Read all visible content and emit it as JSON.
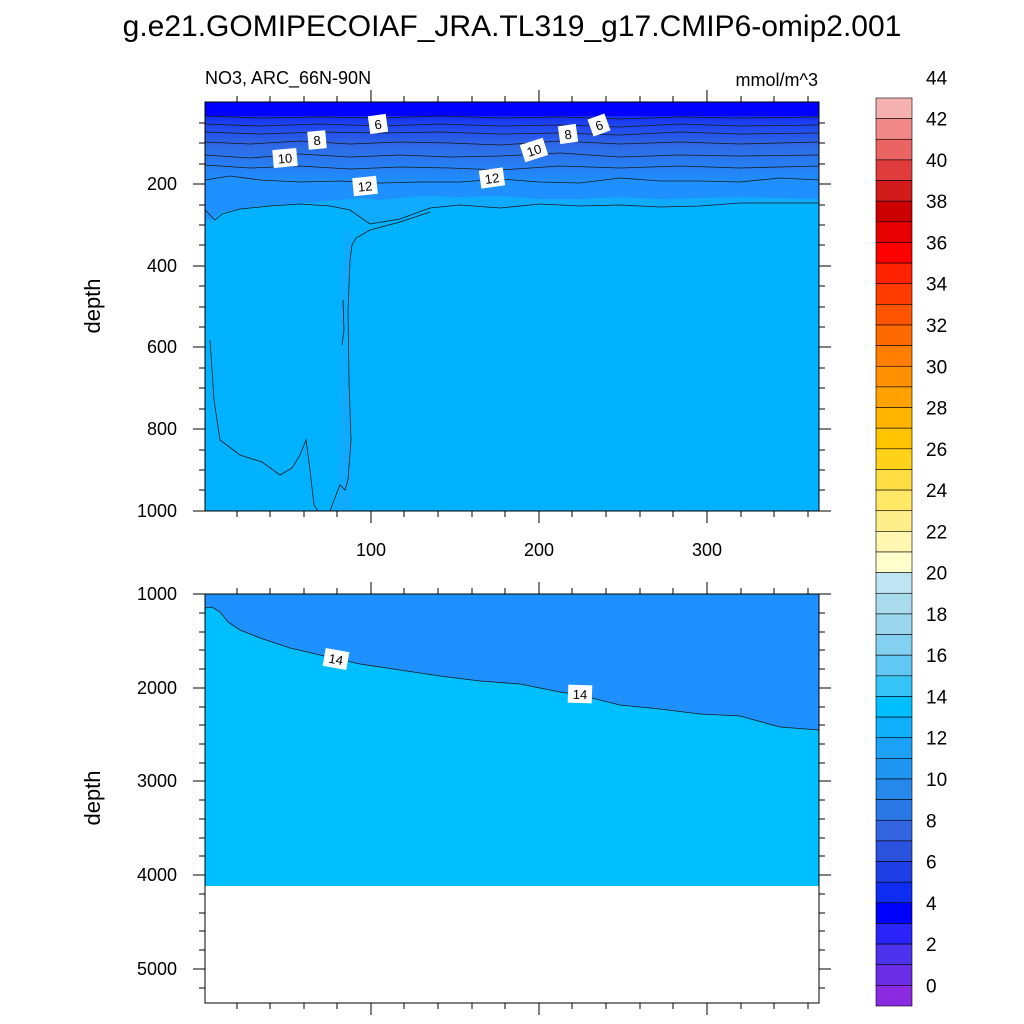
{
  "title": "g.e21.GOMIPECOIAF_JRA.TL319_g17.CMIP6-omip2.001",
  "chart_data": [
    {
      "type": "heatmap",
      "panel": "upper",
      "subtitle_left": "NO3, ARC_66N-90N",
      "subtitle_right": "mmol/m^3",
      "ylabel": "depth",
      "xlabel": "",
      "xlim": [
        1,
        366
      ],
      "ylim": [
        1000,
        0
      ],
      "x_ticks": [
        "100",
        "200",
        "300"
      ],
      "y_ticks": [
        "200",
        "400",
        "600",
        "800",
        "1000"
      ],
      "contour_labels": [
        "6",
        "8",
        "10",
        "12",
        "6",
        "8",
        "10",
        "12"
      ],
      "contours": [
        {
          "level": 6,
          "depth_at_start": 75,
          "depth_at_end": 70
        },
        {
          "level": 8,
          "depth_at_start": 110,
          "depth_at_end": 110
        },
        {
          "level": 10,
          "depth_at_start": 150,
          "depth_at_end": 150
        },
        {
          "level": 12,
          "depth_at_start": 190,
          "depth_at_end": 185
        },
        {
          "level": 13,
          "depth_at_start": 260,
          "depth_at_end": 245
        }
      ]
    },
    {
      "type": "heatmap",
      "panel": "lower",
      "ylabel": "depth",
      "xlabel": "",
      "xlim": [
        1,
        366
      ],
      "ylim": [
        5350,
        1000
      ],
      "y_ticks": [
        "1000",
        "2000",
        "3000",
        "4000",
        "5000"
      ],
      "contour_labels": [
        "14",
        "14"
      ],
      "contours": [
        {
          "level": 14,
          "depth_at_start": 1150,
          "depth_at_end": 2450
        }
      ],
      "data_bottom_depth": 4100
    }
  ],
  "colorbar": {
    "labels": [
      "0",
      "2",
      "4",
      "6",
      "8",
      "10",
      "12",
      "14",
      "16",
      "18",
      "20",
      "22",
      "24",
      "26",
      "28",
      "30",
      "32",
      "34",
      "36",
      "38",
      "40",
      "42",
      "44"
    ],
    "colors": [
      "#8a2be2",
      "#6a2ee6",
      "#4f32ee",
      "#2a24f8",
      "#0000ff",
      "#0e2cf2",
      "#1f3fe6",
      "#2b52dc",
      "#3465e0",
      "#2a78e6",
      "#2788ec",
      "#1e96f2",
      "#1ba2f8",
      "#10b0fc",
      "#00bfff",
      "#34c4f6",
      "#60c8f2",
      "#84d0f0",
      "#9ad6ee",
      "#aadcee",
      "#bfe4f2",
      "#ffffcc",
      "#fff6b0",
      "#ffef8a",
      "#ffe866",
      "#ffde44",
      "#ffd21a",
      "#ffc400",
      "#ffb400",
      "#ffa200",
      "#ff9000",
      "#ff7e00",
      "#ff6a00",
      "#ff5500",
      "#ff3c00",
      "#ff2200",
      "#ff0000",
      "#e60000",
      "#cc0000",
      "#d21b1b",
      "#e03c3c",
      "#ea6464",
      "#f08888",
      "#f5b0b0"
    ]
  },
  "colors": {
    "deep_blue": "#0000ff",
    "mid_blue": "#1e90ff",
    "cyan_blue": "#00bfff",
    "contour_line": "#1a1a1a"
  }
}
